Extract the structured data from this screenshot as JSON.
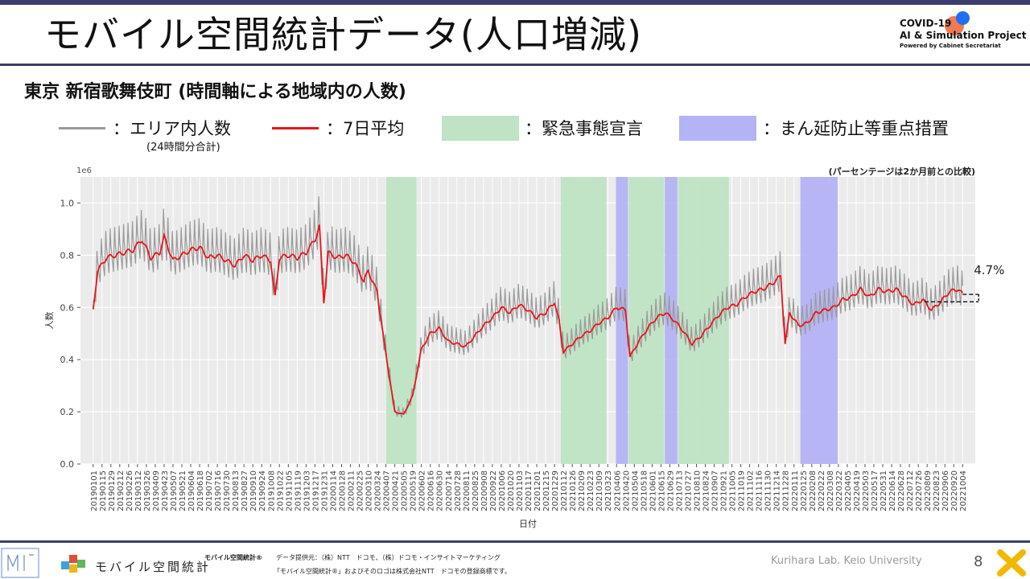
{
  "header": {
    "title": "モバイル空間統計データ(人口増減)",
    "logo_line1": "COVID-19",
    "logo_line2": "AI & Simulation Project",
    "logo_line3": "Powered by Cabinet Secretariat"
  },
  "subtitle": "東京 新宿歌舞伎町 (時間軸による地域内の人数)",
  "legend": {
    "area_total": "：エリア内人数",
    "area_total_sub": "(24時間分合計)",
    "avg7": "：7日平均",
    "emergency": "：緊急事態宣言",
    "priority": "：まん延防止等重点措置"
  },
  "colors": {
    "raw": "#9a9a9a",
    "avg": "#e8151c",
    "emergency": "#bfe3c4",
    "priority": "#b3b3f6",
    "panel": "#ebebeb",
    "title_rule": "#3d3c6e"
  },
  "chart_data": {
    "type": "line",
    "exponent_label": "1e6",
    "ylabel": "人数",
    "xlabel": "日付",
    "ylim": [
      0.0,
      1.1
    ],
    "yticks": [
      0.0,
      0.2,
      0.4,
      0.6,
      0.8,
      1.0
    ],
    "comparison_note": "(パーセンテージは2か月前との比較)",
    "change_label": "4.7%",
    "x_ticks": [
      "20190101",
      "20190115",
      "20190129",
      "20190212",
      "20190226",
      "20190312",
      "20190326",
      "20190409",
      "20190423",
      "20190507",
      "20190521",
      "20190604",
      "20190618",
      "20190702",
      "20190716",
      "20190730",
      "20190813",
      "20190827",
      "20190910",
      "20190924",
      "20191008",
      "20191022",
      "20191105",
      "20191119",
      "20191203",
      "20191217",
      "20191231",
      "20200114",
      "20200128",
      "20200211",
      "20200225",
      "20200310",
      "20200324",
      "20200407",
      "20200421",
      "20200505",
      "20200519",
      "20200602",
      "20200616",
      "20200630",
      "20200714",
      "20200728",
      "20200811",
      "20200825",
      "20200908",
      "20200922",
      "20201006",
      "20201020",
      "20201103",
      "20201117",
      "20201201",
      "20201215",
      "20201229",
      "20210112",
      "20210126",
      "20210209",
      "20210223",
      "20210309",
      "20210323",
      "20210406",
      "20210420",
      "20210504",
      "20210518",
      "20210601",
      "20210615",
      "20210629",
      "20210713",
      "20210727",
      "20210810",
      "20210824",
      "20210907",
      "20210921",
      "20211005",
      "20211019",
      "20211102",
      "20211116",
      "20211130",
      "20211214",
      "20211228",
      "20220111",
      "20220125",
      "20220208",
      "20220222",
      "20220308",
      "20220322",
      "20220405",
      "20220419",
      "20220503",
      "20220517",
      "20220531",
      "20220614",
      "20220628",
      "20220712",
      "20220726",
      "20220809",
      "20220823",
      "20220906",
      "20220920",
      "20221004"
    ],
    "emergency_periods": [
      [
        "20200407",
        "20200525"
      ],
      [
        "20210108",
        "20210321"
      ],
      [
        "20210425",
        "20210620"
      ],
      [
        "20210712",
        "20210930"
      ]
    ],
    "priority_periods": [
      [
        "20210405",
        "20210424"
      ],
      [
        "20210621",
        "20210711"
      ],
      [
        "20220121",
        "20220321"
      ]
    ],
    "avg_series": {
      "name": "7日平均",
      "points": [
        [
          "20190101",
          0.59
        ],
        [
          "20190108",
          0.74
        ],
        [
          "20190122",
          0.79
        ],
        [
          "20190205",
          0.8
        ],
        [
          "20190219",
          0.81
        ],
        [
          "20190305",
          0.82
        ],
        [
          "20190319",
          0.86
        ],
        [
          "20190402",
          0.79
        ],
        [
          "20190416",
          0.81
        ],
        [
          "20190423",
          0.87
        ],
        [
          "20190507",
          0.78
        ],
        [
          "20190521",
          0.8
        ],
        [
          "20190604",
          0.82
        ],
        [
          "20190618",
          0.83
        ],
        [
          "20190702",
          0.79
        ],
        [
          "20190716",
          0.8
        ],
        [
          "20190730",
          0.78
        ],
        [
          "20190813",
          0.76
        ],
        [
          "20190827",
          0.8
        ],
        [
          "20190910",
          0.78
        ],
        [
          "20190924",
          0.8
        ],
        [
          "20191008",
          0.78
        ],
        [
          "20191015",
          0.64
        ],
        [
          "20191022",
          0.79
        ],
        [
          "20191105",
          0.8
        ],
        [
          "20191119",
          0.79
        ],
        [
          "20191203",
          0.81
        ],
        [
          "20191217",
          0.86
        ],
        [
          "20191224",
          0.91
        ],
        [
          "20191231",
          0.62
        ],
        [
          "20200107",
          0.81
        ],
        [
          "20200121",
          0.79
        ],
        [
          "20200204",
          0.8
        ],
        [
          "20200218",
          0.77
        ],
        [
          "20200303",
          0.7
        ],
        [
          "20200310",
          0.74
        ],
        [
          "20200324",
          0.66
        ],
        [
          "20200407",
          0.42
        ],
        [
          "20200421",
          0.2
        ],
        [
          "20200505",
          0.19
        ],
        [
          "20200519",
          0.26
        ],
        [
          "20200602",
          0.44
        ],
        [
          "20200616",
          0.5
        ],
        [
          "20200630",
          0.52
        ],
        [
          "20200714",
          0.47
        ],
        [
          "20200728",
          0.46
        ],
        [
          "20200811",
          0.45
        ],
        [
          "20200825",
          0.49
        ],
        [
          "20200908",
          0.53
        ],
        [
          "20200922",
          0.56
        ],
        [
          "20201006",
          0.6
        ],
        [
          "20201020",
          0.58
        ],
        [
          "20201103",
          0.61
        ],
        [
          "20201117",
          0.59
        ],
        [
          "20201201",
          0.56
        ],
        [
          "20201215",
          0.58
        ],
        [
          "20201229",
          0.62
        ],
        [
          "20210105",
          0.55
        ],
        [
          "20210112",
          0.43
        ],
        [
          "20210126",
          0.46
        ],
        [
          "20210209",
          0.49
        ],
        [
          "20210223",
          0.51
        ],
        [
          "20210309",
          0.54
        ],
        [
          "20210323",
          0.56
        ],
        [
          "20210406",
          0.6
        ],
        [
          "20210420",
          0.59
        ],
        [
          "20210427",
          0.41
        ],
        [
          "20210511",
          0.47
        ],
        [
          "20210525",
          0.52
        ],
        [
          "20210608",
          0.56
        ],
        [
          "20210622",
          0.58
        ],
        [
          "20210706",
          0.55
        ],
        [
          "20210720",
          0.51
        ],
        [
          "20210803",
          0.46
        ],
        [
          "20210817",
          0.49
        ],
        [
          "20210831",
          0.53
        ],
        [
          "20210914",
          0.57
        ],
        [
          "20210928",
          0.6
        ],
        [
          "20211012",
          0.61
        ],
        [
          "20211026",
          0.64
        ],
        [
          "20211109",
          0.66
        ],
        [
          "20211123",
          0.67
        ],
        [
          "20211207",
          0.69
        ],
        [
          "20211221",
          0.72
        ],
        [
          "20211228",
          0.46
        ],
        [
          "20220104",
          0.58
        ],
        [
          "20220118",
          0.53
        ],
        [
          "20220201",
          0.54
        ],
        [
          "20220215",
          0.58
        ],
        [
          "20220301",
          0.59
        ],
        [
          "20220315",
          0.6
        ],
        [
          "20220329",
          0.63
        ],
        [
          "20220412",
          0.64
        ],
        [
          "20220426",
          0.67
        ],
        [
          "20220510",
          0.64
        ],
        [
          "20220524",
          0.67
        ],
        [
          "20220607",
          0.66
        ],
        [
          "20220621",
          0.67
        ],
        [
          "20220705",
          0.64
        ],
        [
          "20220719",
          0.61
        ],
        [
          "20220802",
          0.63
        ],
        [
          "20220816",
          0.59
        ],
        [
          "20220830",
          0.62
        ],
        [
          "20220913",
          0.66
        ],
        [
          "20220927",
          0.67
        ],
        [
          "20221004",
          0.65
        ]
      ]
    }
  },
  "footer": {
    "app_name": "モバイル空間統計",
    "trademark_head": "モバイル空間統計®",
    "source": "データ提供元：（株）NTT　ドコモ、（株）ドコモ・インサイトマーケティング",
    "trademark_note": "「モバイル空間統計®」およびそのロゴは株式会社NTT　ドコモの登録商標です。",
    "lab": "Kurihara Lab. Keio University",
    "page": "8"
  }
}
